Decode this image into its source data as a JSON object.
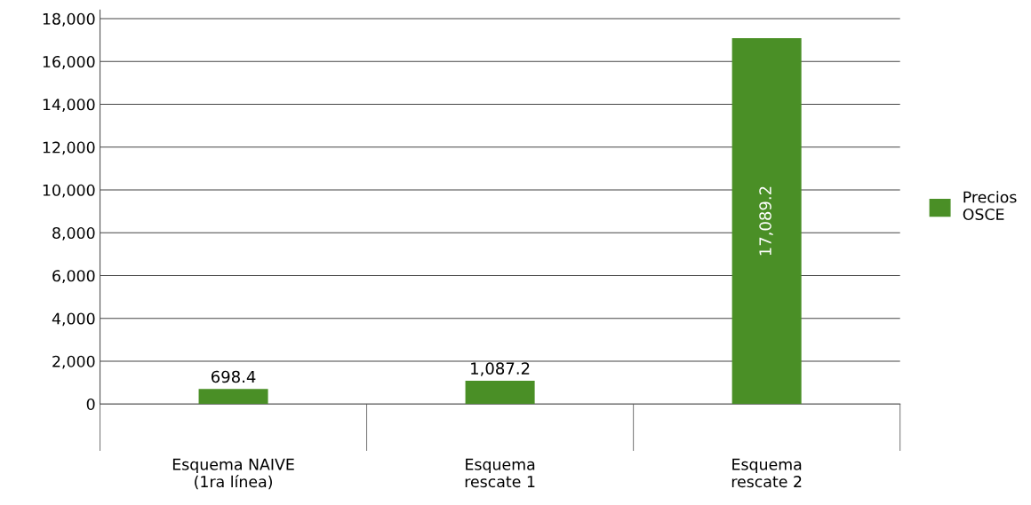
{
  "chart_data": {
    "type": "bar",
    "categories": [
      "Esquema NAIVE\n(1ra línea)",
      "Esquema\nrescate 1",
      "Esquema\nrescate 2"
    ],
    "series": [
      {
        "name": "Precios\nOSCE",
        "color": "#4a8f26",
        "values": [
          698.4,
          1087.2,
          17089.2
        ],
        "value_labels": [
          "698.4",
          "1,087.2",
          "17,089.2"
        ]
      }
    ],
    "ylim": [
      0,
      18400
    ],
    "yticks": [
      0,
      {
        "value": 2000,
        "label": "2,000"
      },
      {
        "value": 4000,
        "label": "4,000"
      },
      {
        "value": 6000,
        "label": "6,000"
      },
      {
        "value": 8000,
        "label": "8,000"
      },
      {
        "value": 10000,
        "label": "10,000"
      },
      {
        "value": 12000,
        "label": "12,000"
      },
      {
        "value": 14000,
        "label": "14,000"
      },
      {
        "value": 16000,
        "label": "16,000"
      },
      {
        "value": 18000,
        "label": "18,000"
      }
    ],
    "grid": "y",
    "legend": "right"
  }
}
